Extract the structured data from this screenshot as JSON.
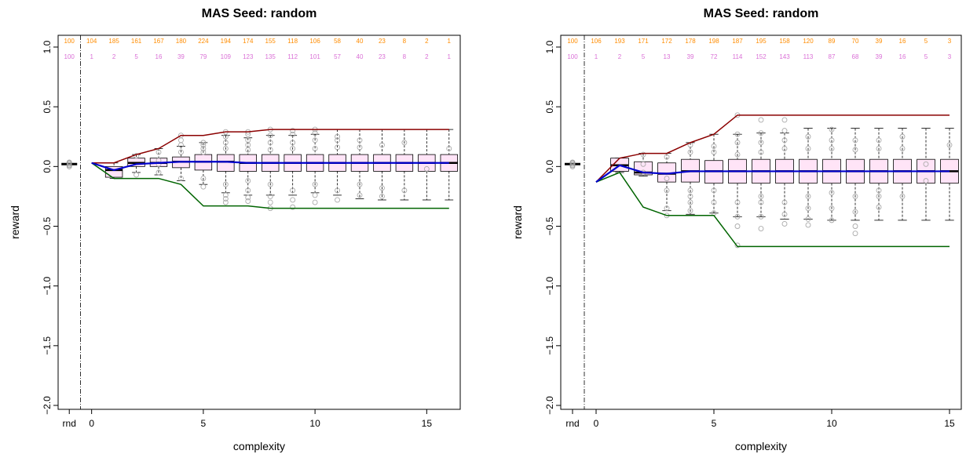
{
  "chart_data": [
    {
      "type": "boxplot",
      "title": "MAS  Seed: random",
      "xlabel": "complexity",
      "ylabel": "reward",
      "ylim": [
        -2.0,
        1.0
      ],
      "xlim": [
        -1.5,
        16.5
      ],
      "yticks": [
        -2.0,
        -1.5,
        -1.0,
        -0.5,
        0.0,
        0.5,
        1.0
      ],
      "yticklabels": [
        "−2.0",
        "−1.5",
        "−1.0",
        "−0.5",
        "0.0",
        "0.5",
        "1.0"
      ],
      "xticks": [
        -1,
        0,
        5,
        10,
        15
      ],
      "xticklabels": [
        "rnd",
        "0",
        "5",
        "10",
        "15"
      ],
      "grid": false,
      "colors": {
        "max": "#8b0000",
        "min": "#006400",
        "median": "#0000cd",
        "counts_top": "#ff8c00",
        "counts_bottom": "#da70d6",
        "box_fill": "#ffe4f7"
      },
      "rnd": {
        "q1": 0.01,
        "median": 0.02,
        "q3": 0.03,
        "outliers": [
          0.0,
          0.01,
          0.02,
          0.03,
          0.035
        ]
      },
      "counts_top": [
        "100",
        "104",
        "185",
        "161",
        "167",
        "180",
        "224",
        "194",
        "174",
        "155",
        "118",
        "106",
        "58",
        "40",
        "23",
        "8",
        "2",
        "1"
      ],
      "counts_bottom": [
        "100",
        "1",
        "2",
        "5",
        "16",
        "39",
        "79",
        "109",
        "123",
        "135",
        "112",
        "101",
        "57",
        "40",
        "23",
        "8",
        "2",
        "1"
      ],
      "complexity": [
        0,
        1,
        2,
        3,
        4,
        5,
        6,
        7,
        8,
        9,
        10,
        11,
        12,
        13,
        14,
        15,
        16
      ],
      "max_line": [
        0.03,
        0.03,
        0.1,
        0.15,
        0.26,
        0.26,
        0.29,
        0.29,
        0.31,
        0.31,
        0.31,
        0.31,
        0.31,
        0.31,
        0.31,
        0.31,
        0.31
      ],
      "min_line": [
        0.03,
        -0.1,
        -0.1,
        -0.1,
        -0.15,
        -0.33,
        -0.33,
        -0.33,
        -0.35,
        -0.35,
        -0.35,
        -0.35,
        -0.35,
        -0.35,
        -0.35,
        -0.35,
        -0.35
      ],
      "median_line": [
        0.03,
        -0.03,
        0.02,
        0.03,
        0.04,
        0.04,
        0.04,
        0.03,
        0.03,
        0.03,
        0.03,
        0.03,
        0.03,
        0.03,
        0.03,
        0.03,
        0.03
      ],
      "boxes": [
        {
          "x": 1,
          "q1": -0.09,
          "median": -0.03,
          "q3": 0.0,
          "lo": -0.1,
          "hi": 0.03,
          "outliers": []
        },
        {
          "x": 2,
          "q1": 0.0,
          "median": 0.03,
          "q3": 0.07,
          "lo": -0.05,
          "hi": 0.1,
          "outliers": [
            -0.07,
            0.09
          ]
        },
        {
          "x": 3,
          "q1": 0.0,
          "median": 0.03,
          "q3": 0.07,
          "lo": -0.07,
          "hi": 0.15,
          "outliers": [
            -0.05,
            0.02,
            0.05,
            0.12
          ]
        },
        {
          "x": 4,
          "q1": -0.01,
          "median": 0.04,
          "q3": 0.08,
          "lo": -0.12,
          "hi": 0.17,
          "outliers": [
            -0.1,
            0.12,
            0.18,
            0.22,
            0.26
          ]
        },
        {
          "x": 5,
          "q1": -0.03,
          "median": 0.04,
          "q3": 0.1,
          "lo": -0.15,
          "hi": 0.2,
          "outliers": [
            -0.17,
            -0.1,
            0.12,
            0.15,
            0.18,
            0.2
          ]
        },
        {
          "x": 6,
          "q1": -0.04,
          "median": 0.04,
          "q3": 0.1,
          "lo": -0.22,
          "hi": 0.26,
          "outliers": [
            -0.3,
            -0.27,
            -0.24,
            -0.15,
            0.15,
            0.2,
            0.25,
            0.29
          ]
        },
        {
          "x": 7,
          "q1": -0.04,
          "median": 0.03,
          "q3": 0.1,
          "lo": -0.24,
          "hi": 0.24,
          "outliers": [
            -0.29,
            -0.26,
            -0.2,
            -0.12,
            0.14,
            0.18,
            0.22,
            0.27,
            0.29
          ]
        },
        {
          "x": 8,
          "q1": -0.04,
          "median": 0.03,
          "q3": 0.1,
          "lo": -0.24,
          "hi": 0.26,
          "outliers": [
            -0.35,
            -0.3,
            -0.25,
            -0.15,
            0.14,
            0.2,
            0.26,
            0.31
          ]
        },
        {
          "x": 9,
          "q1": -0.04,
          "median": 0.03,
          "q3": 0.1,
          "lo": -0.24,
          "hi": 0.26,
          "outliers": [
            -0.34,
            -0.28,
            -0.2,
            0.15,
            0.2,
            0.27,
            0.3
          ]
        },
        {
          "x": 10,
          "q1": -0.04,
          "median": 0.03,
          "q3": 0.1,
          "lo": -0.22,
          "hi": 0.27,
          "outliers": [
            -0.3,
            -0.24,
            -0.15,
            0.15,
            0.22,
            0.28,
            0.31
          ]
        },
        {
          "x": 11,
          "q1": -0.04,
          "median": 0.03,
          "q3": 0.1,
          "lo": -0.24,
          "hi": 0.31,
          "outliers": [
            -0.28,
            -0.2,
            0.16,
            0.22,
            0.25
          ]
        },
        {
          "x": 12,
          "q1": -0.04,
          "median": 0.03,
          "q3": 0.1,
          "lo": -0.27,
          "hi": 0.31,
          "outliers": [
            -0.24,
            -0.15,
            0.16,
            0.22
          ]
        },
        {
          "x": 13,
          "q1": -0.04,
          "median": 0.03,
          "q3": 0.1,
          "lo": -0.28,
          "hi": 0.31,
          "outliers": [
            -0.25,
            -0.18,
            0.18
          ]
        },
        {
          "x": 14,
          "q1": -0.04,
          "median": 0.03,
          "q3": 0.1,
          "lo": -0.28,
          "hi": 0.31,
          "outliers": [
            -0.2,
            0.2
          ]
        },
        {
          "x": 15,
          "q1": -0.04,
          "median": 0.03,
          "q3": 0.1,
          "lo": -0.28,
          "hi": 0.31,
          "outliers": [
            -0.02
          ]
        },
        {
          "x": 16,
          "q1": -0.04,
          "median": 0.03,
          "q3": 0.1,
          "lo": -0.28,
          "hi": 0.31,
          "outliers": [
            0.15
          ]
        }
      ]
    },
    {
      "type": "boxplot",
      "title": "MAS  Seed: random",
      "xlabel": "complexity",
      "ylabel": "reward",
      "ylim": [
        -2.0,
        1.0
      ],
      "xlim": [
        -1.5,
        15.5
      ],
      "yticks": [
        -2.0,
        -1.5,
        -1.0,
        -0.5,
        0.0,
        0.5,
        1.0
      ],
      "yticklabels": [
        "−2.0",
        "−1.5",
        "−1.0",
        "−0.5",
        "0.0",
        "0.5",
        "1.0"
      ],
      "xticks": [
        -1,
        0,
        5,
        10,
        15
      ],
      "xticklabels": [
        "rnd",
        "0",
        "5",
        "10",
        "15"
      ],
      "grid": false,
      "colors": {
        "max": "#8b0000",
        "min": "#006400",
        "median": "#0000cd",
        "counts_top": "#ff8c00",
        "counts_bottom": "#da70d6",
        "box_fill": "#ffe4f7"
      },
      "rnd": {
        "q1": 0.01,
        "median": 0.02,
        "q3": 0.03,
        "outliers": [
          0.0,
          0.01,
          0.02,
          0.03,
          0.035
        ]
      },
      "counts_top": [
        "100",
        "106",
        "193",
        "171",
        "172",
        "178",
        "198",
        "187",
        "195",
        "158",
        "120",
        "89",
        "70",
        "39",
        "16",
        "5",
        "3"
      ],
      "counts_bottom": [
        "100",
        "1",
        "2",
        "5",
        "13",
        "39",
        "72",
        "114",
        "152",
        "143",
        "113",
        "87",
        "68",
        "39",
        "16",
        "5",
        "3"
      ],
      "complexity": [
        0,
        1,
        2,
        3,
        4,
        5,
        6,
        7,
        8,
        9,
        10,
        11,
        12,
        13,
        14,
        15
      ],
      "max_line": [
        -0.13,
        0.07,
        0.11,
        0.11,
        0.2,
        0.27,
        0.43,
        0.43,
        0.43,
        0.43,
        0.43,
        0.43,
        0.43,
        0.43,
        0.43,
        0.43
      ],
      "min_line": [
        -0.13,
        -0.05,
        -0.34,
        -0.41,
        -0.41,
        -0.41,
        -0.67,
        -0.67,
        -0.67,
        -0.67,
        -0.67,
        -0.67,
        -0.67,
        -0.67,
        -0.67,
        -0.67
      ],
      "median_line": [
        -0.13,
        0.01,
        -0.05,
        -0.06,
        -0.04,
        -0.04,
        -0.04,
        -0.04,
        -0.04,
        -0.04,
        -0.04,
        -0.04,
        -0.04,
        -0.04,
        -0.04,
        -0.04
      ],
      "boxes": [
        {
          "x": 1,
          "q1": -0.04,
          "median": 0.01,
          "q3": 0.07,
          "lo": -0.05,
          "hi": 0.07,
          "outliers": []
        },
        {
          "x": 2,
          "q1": -0.07,
          "median": -0.05,
          "q3": 0.04,
          "lo": -0.08,
          "hi": 0.11,
          "outliers": [
            -0.05,
            0.02,
            0.1
          ]
        },
        {
          "x": 3,
          "q1": -0.13,
          "median": -0.06,
          "q3": 0.03,
          "lo": -0.37,
          "hi": 0.11,
          "outliers": [
            -0.41,
            -0.35,
            -0.2,
            -0.1,
            0.08
          ]
        },
        {
          "x": 4,
          "q1": -0.13,
          "median": -0.04,
          "q3": 0.06,
          "lo": -0.4,
          "hi": 0.2,
          "outliers": [
            -0.37,
            -0.3,
            -0.25,
            -0.2,
            0.12,
            0.18
          ]
        },
        {
          "x": 5,
          "q1": -0.14,
          "median": -0.04,
          "q3": 0.05,
          "lo": -0.39,
          "hi": 0.27,
          "outliers": [
            -0.39,
            -0.3,
            -0.2,
            0.12,
            0.17
          ]
        },
        {
          "x": 6,
          "q1": -0.14,
          "median": -0.04,
          "q3": 0.06,
          "lo": -0.42,
          "hi": 0.27,
          "outliers": [
            -0.66,
            -0.5,
            -0.42,
            -0.3,
            0.1,
            0.2,
            0.27,
            0.43
          ]
        },
        {
          "x": 7,
          "q1": -0.14,
          "median": -0.04,
          "q3": 0.06,
          "lo": -0.42,
          "hi": 0.28,
          "outliers": [
            -0.52,
            -0.42,
            -0.3,
            -0.25,
            0.12,
            0.2,
            0.28,
            0.39
          ]
        },
        {
          "x": 8,
          "q1": -0.14,
          "median": -0.04,
          "q3": 0.06,
          "lo": -0.44,
          "hi": 0.28,
          "outliers": [
            -0.48,
            -0.4,
            -0.3,
            0.15,
            0.22,
            0.3,
            0.39
          ]
        },
        {
          "x": 9,
          "q1": -0.14,
          "median": -0.04,
          "q3": 0.06,
          "lo": -0.44,
          "hi": 0.32,
          "outliers": [
            -0.49,
            -0.44,
            -0.35,
            -0.25,
            0.15,
            0.25
          ]
        },
        {
          "x": 10,
          "q1": -0.14,
          "median": -0.04,
          "q3": 0.06,
          "lo": -0.45,
          "hi": 0.32,
          "outliers": [
            -0.45,
            -0.35,
            -0.22,
            0.15,
            0.22,
            0.31
          ]
        },
        {
          "x": 11,
          "q1": -0.14,
          "median": -0.04,
          "q3": 0.06,
          "lo": -0.45,
          "hi": 0.32,
          "outliers": [
            -0.56,
            -0.5,
            -0.38,
            -0.25,
            0.14,
            0.22
          ]
        },
        {
          "x": 12,
          "q1": -0.14,
          "median": -0.04,
          "q3": 0.06,
          "lo": -0.45,
          "hi": 0.32,
          "outliers": [
            -0.34,
            -0.25,
            -0.2,
            0.15,
            0.22
          ]
        },
        {
          "x": 13,
          "q1": -0.14,
          "median": -0.04,
          "q3": 0.06,
          "lo": -0.45,
          "hi": 0.32,
          "outliers": [
            -0.25,
            0.15,
            0.25
          ]
        },
        {
          "x": 14,
          "q1": -0.14,
          "median": -0.04,
          "q3": 0.06,
          "lo": -0.45,
          "hi": 0.32,
          "outliers": [
            -0.12,
            0.02
          ]
        },
        {
          "x": 15,
          "q1": -0.14,
          "median": -0.04,
          "q3": 0.06,
          "lo": -0.45,
          "hi": 0.32,
          "outliers": [
            0.18
          ]
        }
      ]
    }
  ]
}
